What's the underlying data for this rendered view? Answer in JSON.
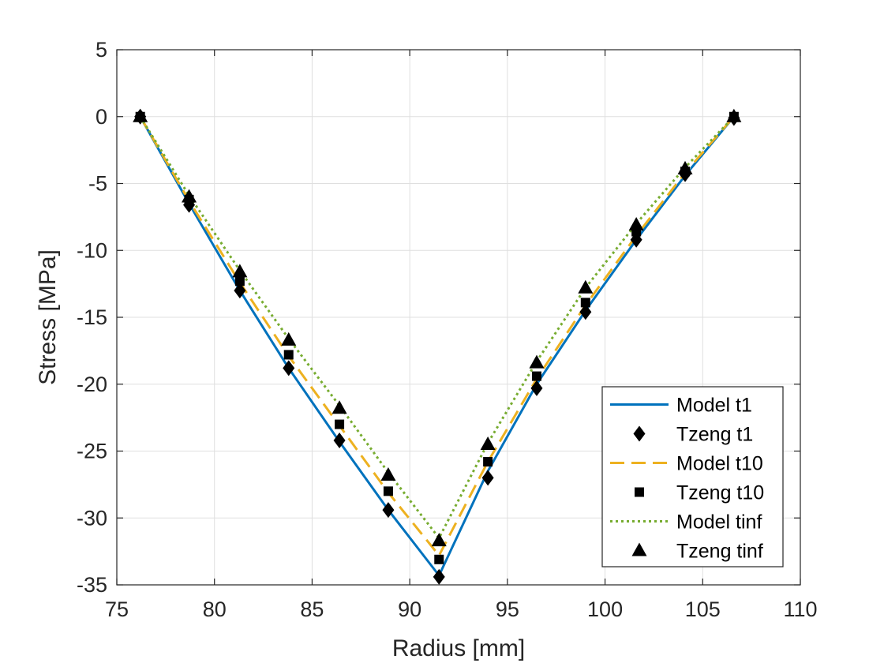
{
  "chart_data": {
    "type": "line",
    "title": "",
    "xlabel": "Radius [mm]",
    "ylabel": "Stress [MPa]",
    "xlim": [
      75,
      110
    ],
    "ylim": [
      -35,
      5
    ],
    "xticks": [
      75,
      80,
      85,
      90,
      95,
      100,
      105,
      110
    ],
    "yticks": [
      5,
      0,
      -5,
      -10,
      -15,
      -20,
      -25,
      -30,
      -35
    ],
    "grid": true,
    "legend_position": "bottom-right",
    "series": [
      {
        "name": "Model t1",
        "kind": "line",
        "style": "solid",
        "color": "#0072BD",
        "x": [
          76.2,
          78.7,
          81.3,
          83.8,
          86.4,
          88.9,
          91.5,
          94.0,
          96.5,
          99.0,
          101.6,
          104.1,
          106.6
        ],
        "y": [
          0,
          -6.5,
          -13.0,
          -18.8,
          -24.3,
          -29.4,
          -34.3,
          -26.5,
          -20.0,
          -14.5,
          -9.2,
          -4.4,
          0
        ]
      },
      {
        "name": "Tzeng t1",
        "kind": "marker",
        "marker": "diamond",
        "color": "#000000",
        "x": [
          76.2,
          78.7,
          81.3,
          83.8,
          86.4,
          88.9,
          91.5,
          94.0,
          96.5,
          99.0,
          101.6,
          104.1,
          106.6
        ],
        "y": [
          0,
          -6.6,
          -13.0,
          -18.8,
          -24.2,
          -29.4,
          -34.4,
          -27.0,
          -20.3,
          -14.6,
          -9.2,
          -4.3,
          -0.1
        ]
      },
      {
        "name": "Model t10",
        "kind": "line",
        "style": "dashed",
        "color": "#EDB120",
        "x": [
          76.2,
          78.7,
          81.3,
          83.8,
          86.4,
          88.9,
          91.5,
          94.0,
          96.5,
          99.0,
          101.6,
          104.1,
          106.6
        ],
        "y": [
          0,
          -6.3,
          -12.4,
          -17.9,
          -23.1,
          -28.1,
          -32.8,
          -25.8,
          -19.6,
          -14.1,
          -8.9,
          -4.2,
          0
        ]
      },
      {
        "name": "Tzeng t10",
        "kind": "marker",
        "marker": "square",
        "color": "#000000",
        "x": [
          76.2,
          78.7,
          81.3,
          83.8,
          86.4,
          88.9,
          91.5,
          94.0,
          96.5,
          99.0,
          101.6,
          104.1,
          106.6
        ],
        "y": [
          0,
          -6.2,
          -12.3,
          -17.8,
          -23.0,
          -28.0,
          -33.1,
          -25.8,
          -19.4,
          -13.9,
          -8.6,
          -4.1,
          0
        ]
      },
      {
        "name": "Model tinf",
        "kind": "line",
        "style": "dotted",
        "color": "#77AC30",
        "x": [
          76.2,
          78.7,
          81.3,
          83.8,
          86.4,
          88.9,
          91.5,
          94.0,
          96.5,
          99.0,
          101.6,
          104.1,
          106.6
        ],
        "y": [
          0,
          -5.9,
          -11.5,
          -16.6,
          -21.6,
          -26.6,
          -31.5,
          -24.4,
          -18.3,
          -12.8,
          -8.0,
          -3.8,
          0
        ]
      },
      {
        "name": "Tzeng tinf",
        "kind": "marker",
        "marker": "triangle",
        "color": "#000000",
        "x": [
          76.2,
          78.7,
          81.3,
          83.8,
          86.4,
          88.9,
          91.5,
          94.0,
          96.5,
          99.0,
          101.6,
          104.1,
          106.6
        ],
        "y": [
          0,
          -6.0,
          -11.6,
          -16.7,
          -21.8,
          -26.8,
          -31.7,
          -24.5,
          -18.4,
          -12.8,
          -8.1,
          -3.9,
          0
        ]
      }
    ]
  }
}
